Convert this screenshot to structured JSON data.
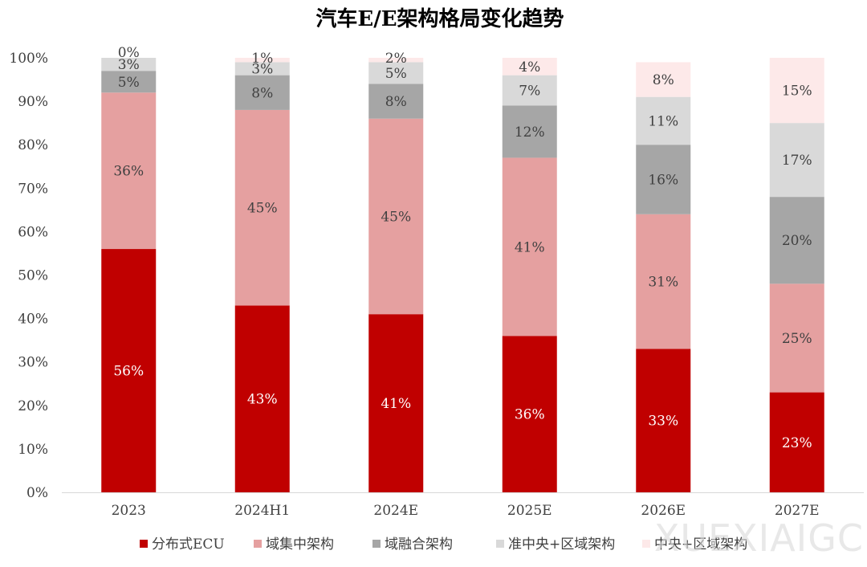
{
  "chart_data": {
    "type": "bar",
    "stacked": true,
    "title": "汽车E/E架构格局变化趋势",
    "categories": [
      "2023",
      "2024H1",
      "2024E",
      "2025E",
      "2026E",
      "2027E"
    ],
    "ylim": [
      0,
      100
    ],
    "yticks": [
      "0%",
      "10%",
      "20%",
      "30%",
      "40%",
      "50%",
      "60%",
      "70%",
      "80%",
      "90%",
      "100%"
    ],
    "legend_position": "bottom",
    "series": [
      {
        "name": "分布式ECU",
        "color": "#c00000",
        "label_color": "#ffffff",
        "values": [
          56,
          43,
          41,
          36,
          33,
          23
        ],
        "labels": [
          "56%",
          "43%",
          "41%",
          "36%",
          "33%",
          "23%"
        ]
      },
      {
        "name": "域集中架构",
        "color": "#e5a0a0",
        "label_color": "#404040",
        "values": [
          36,
          45,
          45,
          41,
          31,
          25
        ],
        "labels": [
          "36%",
          "45%",
          "45%",
          "41%",
          "31%",
          "25%"
        ]
      },
      {
        "name": "域融合架构",
        "color": "#a6a6a6",
        "label_color": "#404040",
        "values": [
          5,
          8,
          8,
          12,
          16,
          20
        ],
        "labels": [
          "5%",
          "8%",
          "8%",
          "12%",
          "16%",
          "20%"
        ]
      },
      {
        "name": "准中央+区域架构",
        "color": "#d9d9d9",
        "label_color": "#404040",
        "values": [
          3,
          3,
          5,
          7,
          11,
          17
        ],
        "labels": [
          "3%",
          "3%",
          "5%",
          "7%",
          "11%",
          "17%"
        ]
      },
      {
        "name": "中央+区域架构",
        "color": "#fde9e9",
        "label_color": "#404040",
        "values": [
          0,
          1,
          2,
          4,
          8,
          15
        ],
        "labels": [
          "0%",
          "1%",
          "2%",
          "4%",
          "8%",
          "15%"
        ]
      }
    ],
    "watermark": "XUEXIAIGC"
  }
}
